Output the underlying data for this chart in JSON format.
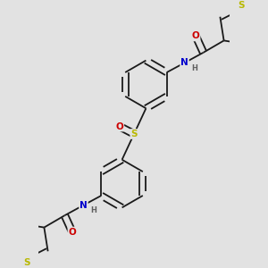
{
  "bg_color": "#e2e2e2",
  "bond_color": "#1a1a1a",
  "bond_width": 1.3,
  "atom_colors": {
    "S": "#b8b800",
    "N": "#0000cc",
    "O": "#cc0000",
    "H": "#606060"
  },
  "font_size_atom": 7.5,
  "font_size_h": 6.0,
  "xlim": [
    -2.8,
    2.8
  ],
  "ylim": [
    -3.5,
    3.5
  ]
}
